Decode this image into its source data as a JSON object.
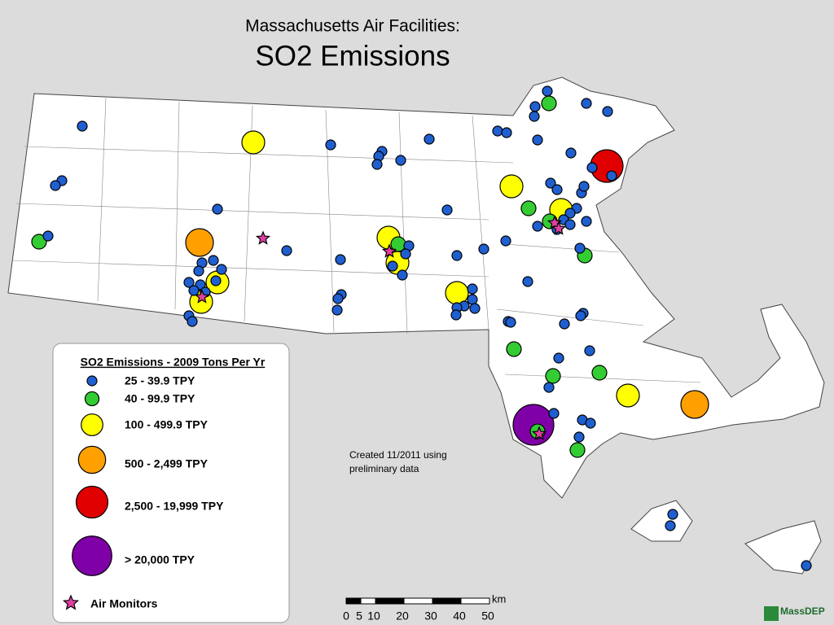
{
  "title": "Massachusetts Air Facilities:",
  "subtitle": "SO2 Emissions",
  "legend": {
    "title": "SO2 Emissions - 2009 Tons Per Yr",
    "items": [
      "25 - 39.9 TPY",
      "40 - 99.9 TPY",
      "100 - 499.9 TPY",
      "500 - 2,499 TPY",
      "2,500 - 19,999 TPY",
      "> 20,000 TPY"
    ],
    "monitors": "Air Monitors"
  },
  "note": "Created 11/2011 using preliminary data",
  "scale_bar": {
    "unit": "km",
    "labels": [
      "0",
      "5",
      "10",
      "20",
      "30",
      "40",
      "50"
    ]
  },
  "logo": "MassDEP"
}
